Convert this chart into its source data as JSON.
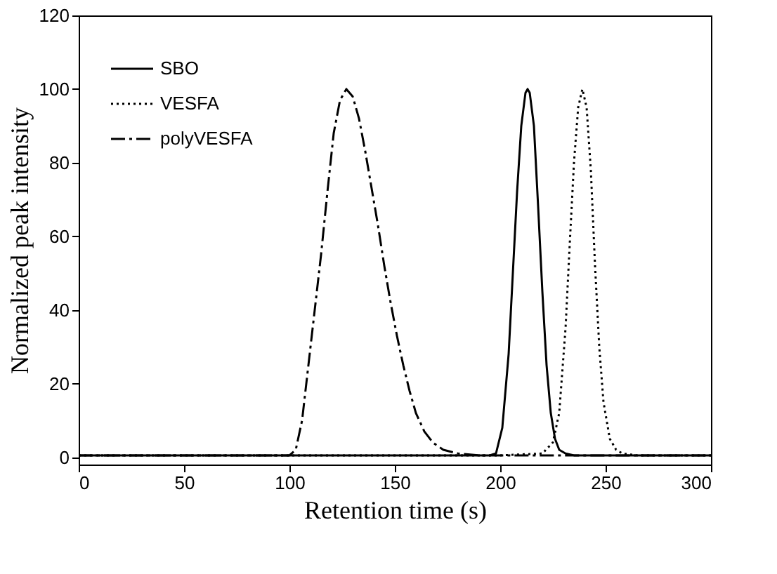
{
  "chart_data": {
    "type": "line",
    "xlabel": "Retention time (s)",
    "ylabel": "Normalized peak intensity",
    "xlim": [
      0,
      300
    ],
    "xticks": [
      0,
      50,
      100,
      150,
      200,
      250,
      300
    ],
    "ylim": [
      -2,
      120
    ],
    "yticks": [
      0,
      20,
      40,
      60,
      80,
      100,
      120
    ],
    "grid": false,
    "legend": "top left",
    "marker": "none",
    "series": [
      {
        "name": "SBO",
        "color": "#000000",
        "line_style": "solid",
        "x": [
          0,
          150,
          195,
          198,
          201,
          204,
          206,
          208,
          210,
          212,
          213,
          214,
          216,
          218,
          220,
          222,
          224,
          226,
          228,
          231,
          235,
          260,
          300
        ],
        "values": [
          0.5,
          0.5,
          0.5,
          1,
          8,
          28,
          50,
          72,
          90,
          99,
          100,
          99,
          90,
          68,
          45,
          25,
          12,
          5,
          2,
          1,
          0.5,
          0.5,
          0.5
        ]
      },
      {
        "name": "VESFA",
        "color": "#000000",
        "line_style": "dotted",
        "x": [
          0,
          200,
          220,
          225,
          228,
          231,
          233,
          235,
          237,
          239,
          241,
          243,
          245,
          247,
          249,
          252,
          255,
          258,
          265,
          300
        ],
        "values": [
          0.5,
          0.5,
          1,
          4,
          12,
          35,
          58,
          80,
          95,
          100,
          95,
          78,
          52,
          30,
          15,
          5,
          2,
          1,
          0.5,
          0.5
        ]
      },
      {
        "name": "polyVESFA",
        "color": "#000000",
        "line_style": "dashed",
        "x": [
          0,
          100,
          103,
          106,
          109,
          112,
          115,
          118,
          121,
          124,
          127,
          130,
          133,
          136,
          139,
          142,
          145,
          148,
          151,
          154,
          157,
          160,
          164,
          168,
          173,
          180,
          190,
          300
        ],
        "values": [
          0.5,
          0.5,
          2,
          10,
          25,
          40,
          55,
          72,
          88,
          97,
          100,
          98,
          92,
          83,
          73,
          63,
          52,
          42,
          33,
          25,
          18,
          12,
          7,
          4,
          2,
          1,
          0.5,
          0.5
        ]
      }
    ]
  }
}
